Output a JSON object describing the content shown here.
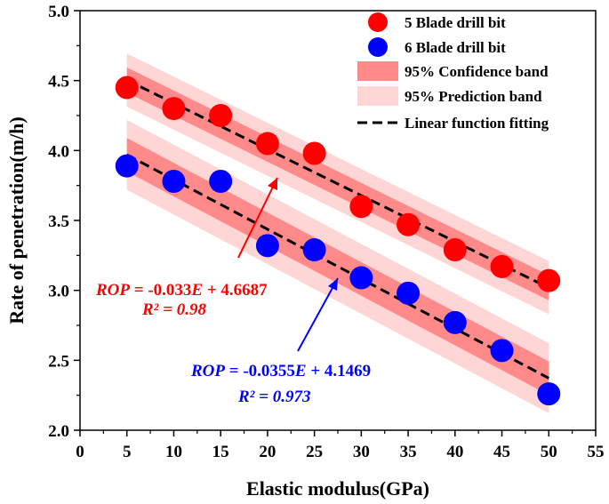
{
  "chart_data": {
    "type": "scatter",
    "xlabel": "Elastic modulus(GPa)",
    "ylabel": "Rate of penetration(m/h)",
    "xlim": [
      0,
      55
    ],
    "ylim": [
      2.0,
      5.0
    ],
    "x_ticks": [
      "0",
      "5",
      "10",
      "15",
      "20",
      "25",
      "30",
      "35",
      "40",
      "45",
      "50",
      "55"
    ],
    "y_ticks": [
      "2.0",
      "2.5",
      "3.0",
      "3.5",
      "4.0",
      "4.5",
      "5.0"
    ],
    "series": [
      {
        "name": "5 Blade drill bit",
        "color": "#ff0000",
        "x": [
          5,
          10,
          15,
          20,
          25,
          30,
          35,
          40,
          45,
          50
        ],
        "y": [
          4.45,
          4.3,
          4.25,
          4.05,
          3.98,
          3.6,
          3.47,
          3.29,
          3.17,
          3.07
        ],
        "fit": {
          "slope": -0.033,
          "intercept": 4.6687
        },
        "confidence_halfwidth": 0.09,
        "prediction_halfwidth": 0.19,
        "equation_prefix": "ROP",
        "equation_mid": " = -0.033",
        "equation_var": "E",
        "equation_suffix": " + 4.6687",
        "r2_label": "R² = 0.98"
      },
      {
        "name": "6 Blade drill bit",
        "color": "#0000ff",
        "x": [
          5,
          10,
          15,
          20,
          25,
          30,
          35,
          40,
          45,
          50
        ],
        "y": [
          3.89,
          3.78,
          3.78,
          3.32,
          3.29,
          3.09,
          2.98,
          2.77,
          2.57,
          2.26
        ],
        "fit": {
          "slope": -0.0355,
          "intercept": 4.1469
        },
        "confidence_halfwidth": 0.12,
        "prediction_halfwidth": 0.25,
        "equation_prefix": "ROP",
        "equation_mid": " = -0.0355",
        "equation_var": "E",
        "equation_suffix": " + 4.1469",
        "r2_label": "R² = 0.973"
      }
    ],
    "legend": {
      "position": "top-right",
      "entries": [
        "5 Blade drill bit",
        "6 Blade drill bit",
        "95% Confidence band",
        "95% Prediction band",
        "Linear function fitting"
      ]
    },
    "colors": {
      "confidence_band": "#ff8a8a",
      "prediction_band": "#ffd6d6",
      "fit_line": "#000000"
    }
  }
}
